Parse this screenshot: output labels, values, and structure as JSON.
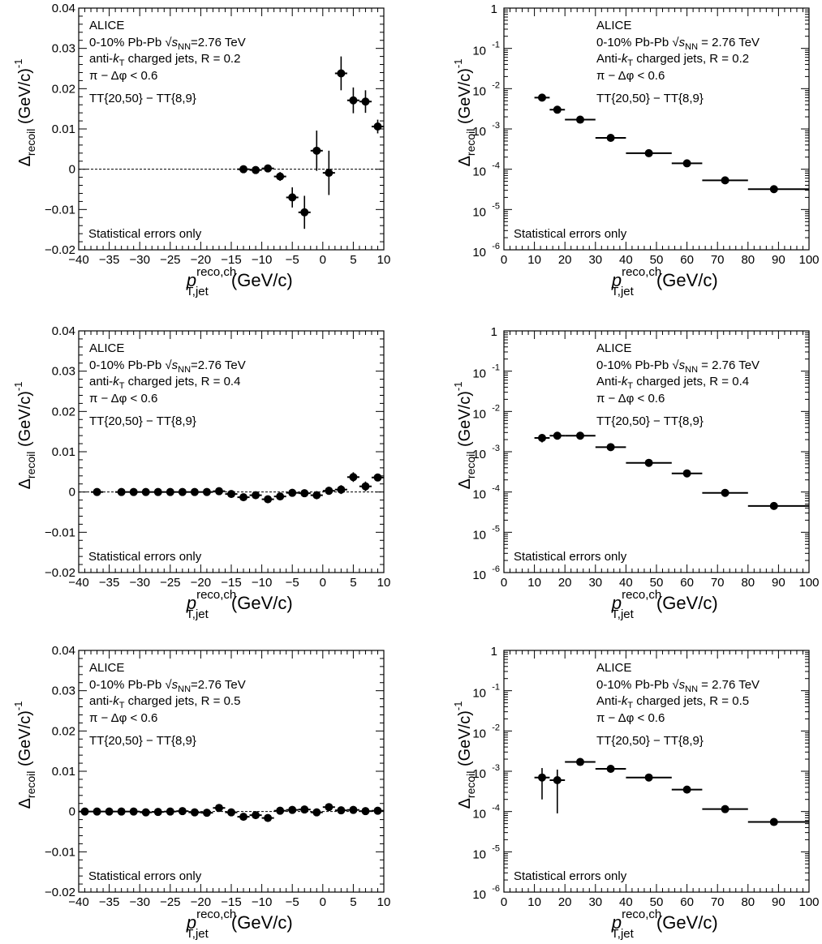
{
  "chart_data": [
    {
      "id": "lin-r02",
      "type": "scatter",
      "scale": "linear",
      "xlim": [
        -40,
        10
      ],
      "ylim": [
        -0.02,
        0.04
      ],
      "xticks": [
        "−40",
        "−35",
        "−30",
        "−25",
        "−20",
        "−15",
        "−10",
        "−5",
        "0",
        "5",
        "10"
      ],
      "yticks": [
        "−0.02",
        "−0.01",
        "0",
        "0.01",
        "0.02",
        "0.03",
        "0.04"
      ],
      "xlabel": "p",
      "xlabel_sup": "reco,ch",
      "xlabel_sub": "T,jet",
      "xlabel_unit": "(GeV/c)",
      "ylabel": "Δ",
      "ylabel_sub": "recoil",
      "ylabel_unit": "(GeV/c)",
      "ylabel_exp": "-1",
      "annotations": [
        "ALICE",
        "0-10% Pb-Pb √sNN=2.76 TeV",
        "anti-kT charged jets, R = 0.2",
        "π − Δφ < 0.6",
        "TT{20,50} − TT{8,9}"
      ],
      "note": "Statistical errors only",
      "reference_line": 0,
      "x": [
        -13,
        -11,
        -9,
        -7,
        -5,
        -3,
        -1,
        1,
        3,
        5,
        7,
        9
      ],
      "y": [
        0.0,
        -0.0002,
        0.0002,
        -0.0018,
        -0.007,
        -0.0107,
        0.0046,
        -0.0009,
        0.0238,
        0.0171,
        0.0168,
        0.0106
      ],
      "yerr": [
        0.0005,
        0.0005,
        0.0006,
        0.0011,
        0.0025,
        0.0041,
        0.005,
        0.0055,
        0.0042,
        0.0032,
        0.0028,
        0.0017
      ],
      "xerr": [
        1,
        1,
        1,
        1,
        1,
        1,
        1,
        1,
        1,
        1,
        1,
        1
      ]
    },
    {
      "id": "log-r02",
      "type": "scatter",
      "scale": "log",
      "xlim": [
        0,
        100
      ],
      "ylim": [
        1e-06,
        1
      ],
      "xticks": [
        "0",
        "10",
        "20",
        "30",
        "40",
        "50",
        "60",
        "70",
        "80",
        "90",
        "100"
      ],
      "yticks_base": [
        "10",
        "10",
        "10",
        "10",
        "10",
        "10",
        "1"
      ],
      "yticks_exp": [
        "-6",
        "-5",
        "-4",
        "-3",
        "-2",
        "-1",
        ""
      ],
      "xlabel": "p",
      "xlabel_sup": "reco,ch",
      "xlabel_sub": "T,jet",
      "xlabel_unit": "(GeV/c)",
      "ylabel": "Δ",
      "ylabel_sub": "recoil",
      "ylabel_unit": "(GeV/c)",
      "ylabel_exp": "-1",
      "annotations": [
        "ALICE",
        "0-10% Pb-Pb √sNN = 2.76 TeV",
        "Anti-kT charged jets, R = 0.2",
        "π − Δφ < 0.6",
        "TT{20,50} − TT{8,9}"
      ],
      "note": "Statistical errors only",
      "x": [
        12.5,
        17.5,
        25,
        35,
        47.5,
        60,
        72.5,
        88.5
      ],
      "y": [
        0.006,
        0.003,
        0.0017,
        0.0006,
        0.00025,
        0.00014,
        5.3e-05,
        3.2e-05
      ],
      "xlo": [
        10,
        15,
        20,
        30,
        40,
        55,
        65,
        80
      ],
      "xhi": [
        15,
        20,
        30,
        40,
        55,
        65,
        80,
        100
      ],
      "ylo": [
        0.0052,
        0.0026,
        0.0015,
        0.00053,
        0.00022,
        0.000125,
        4.3e-05,
        2.6e-05
      ],
      "yhi": [
        0.0068,
        0.0034,
        0.0019,
        0.00067,
        0.00028,
        0.000155,
        6.3e-05,
        3.8e-05
      ]
    },
    {
      "id": "lin-r04",
      "type": "scatter",
      "scale": "linear",
      "xlim": [
        -40,
        10
      ],
      "ylim": [
        -0.02,
        0.04
      ],
      "xticks": [
        "−40",
        "−35",
        "−30",
        "−25",
        "−20",
        "−15",
        "−10",
        "−5",
        "0",
        "5",
        "10"
      ],
      "yticks": [
        "−0.02",
        "−0.01",
        "0",
        "0.01",
        "0.02",
        "0.03",
        "0.04"
      ],
      "xlabel": "p",
      "xlabel_sup": "reco,ch",
      "xlabel_sub": "T,jet",
      "xlabel_unit": "(GeV/c)",
      "ylabel": "Δ",
      "ylabel_sub": "recoil",
      "ylabel_unit": "(GeV/c)",
      "ylabel_exp": "-1",
      "annotations": [
        "ALICE",
        "0-10% Pb-Pb √sNN=2.76 TeV",
        "anti-kT charged jets, R = 0.4",
        "π − Δφ < 0.6",
        "TT{20,50} − TT{8,9}"
      ],
      "note": "Statistical errors only",
      "reference_line": 0,
      "x": [
        -37,
        -33,
        -31,
        -29,
        -27,
        -25,
        -23,
        -21,
        -19,
        -17,
        -15,
        -13,
        -11,
        -9,
        -7,
        -5,
        -3,
        -1,
        1,
        3,
        5,
        7,
        9
      ],
      "y": [
        0.0,
        0.0,
        0.0,
        0.0,
        0.0,
        0.0,
        0.0,
        0.0,
        0.0,
        0.0002,
        -0.0005,
        -0.0013,
        -0.0008,
        -0.0018,
        -0.0011,
        -0.0002,
        -0.0003,
        -0.0008,
        0.0003,
        0.0006,
        0.0037,
        0.0014,
        0.0036
      ],
      "yerr": [
        0.0003,
        0.0003,
        0.0003,
        0.0003,
        0.0003,
        0.0003,
        0.0003,
        0.0003,
        0.0003,
        0.0004,
        0.0004,
        0.0006,
        0.0006,
        0.0007,
        0.0008,
        0.0008,
        0.0009,
        0.001,
        0.001,
        0.0011,
        0.0012,
        0.0012,
        0.0009
      ],
      "xerr": [
        1,
        1,
        1,
        1,
        1,
        1,
        1,
        1,
        1,
        1,
        1,
        1,
        1,
        1,
        1,
        1,
        1,
        1,
        1,
        1,
        1,
        1,
        1
      ]
    },
    {
      "id": "log-r04",
      "type": "scatter",
      "scale": "log",
      "xlim": [
        0,
        100
      ],
      "ylim": [
        1e-06,
        1
      ],
      "xticks": [
        "0",
        "10",
        "20",
        "30",
        "40",
        "50",
        "60",
        "70",
        "80",
        "90",
        "100"
      ],
      "yticks_base": [
        "10",
        "10",
        "10",
        "10",
        "10",
        "10",
        "1"
      ],
      "yticks_exp": [
        "-6",
        "-5",
        "-4",
        "-3",
        "-2",
        "-1",
        ""
      ],
      "xlabel": "p",
      "xlabel_sup": "reco,ch",
      "xlabel_sub": "T,jet",
      "xlabel_unit": "(GeV/c)",
      "ylabel": "Δ",
      "ylabel_sub": "recoil",
      "ylabel_unit": "(GeV/c)",
      "ylabel_exp": "-1",
      "annotations": [
        "ALICE",
        "0-10% Pb-Pb √sNN = 2.76 TeV",
        "Anti-kT charged jets, R = 0.4",
        "π − Δφ < 0.6",
        "TT{20,50} − TT{8,9}"
      ],
      "note": "Statistical errors only",
      "x": [
        12.5,
        17.5,
        25,
        35,
        47.5,
        60,
        72.5,
        88.5
      ],
      "y": [
        0.0022,
        0.0025,
        0.0025,
        0.0013,
        0.00053,
        0.00029,
        9.5e-05,
        4.5e-05
      ],
      "xlo": [
        10,
        15,
        20,
        30,
        40,
        55,
        65,
        80
      ],
      "xhi": [
        15,
        20,
        30,
        40,
        55,
        65,
        80,
        100
      ],
      "ylo": [
        0.0017,
        0.0021,
        0.0022,
        0.00117,
        0.00048,
        0.00026,
        8.5e-05,
        4e-05
      ],
      "yhi": [
        0.0027,
        0.0029,
        0.0028,
        0.00143,
        0.00058,
        0.00032,
        0.000105,
        5e-05
      ]
    },
    {
      "id": "lin-r05",
      "type": "scatter",
      "scale": "linear",
      "xlim": [
        -40,
        10
      ],
      "ylim": [
        -0.02,
        0.04
      ],
      "xticks": [
        "−40",
        "−35",
        "−30",
        "−25",
        "−20",
        "−15",
        "−10",
        "−5",
        "0",
        "5",
        "10"
      ],
      "yticks": [
        "−0.02",
        "−0.01",
        "0",
        "0.01",
        "0.02",
        "0.03",
        "0.04"
      ],
      "xlabel": "p",
      "xlabel_sup": "reco,ch",
      "xlabel_sub": "T,jet",
      "xlabel_unit": "(GeV/c)",
      "ylabel": "Δ",
      "ylabel_sub": "recoil",
      "ylabel_unit": "(GeV/c)",
      "ylabel_exp": "-1",
      "annotations": [
        "ALICE",
        "0-10% Pb-Pb √sNN=2.76 TeV",
        "anti-kT charged jets, R = 0.5",
        "π − Δφ < 0.6",
        "TT{20,50} − TT{8,9}"
      ],
      "note": "Statistical errors only",
      "reference_line": 0,
      "x": [
        -39,
        -37,
        -35,
        -33,
        -31,
        -29,
        -27,
        -25,
        -23,
        -21,
        -19,
        -17,
        -15,
        -13,
        -11,
        -9,
        -7,
        -5,
        -3,
        -1,
        1,
        3,
        5,
        7,
        9
      ],
      "y": [
        0.0,
        0.0,
        0.0,
        0.0,
        0.0,
        -0.0002,
        -0.0001,
        0.0,
        0.0001,
        -0.0002,
        -0.0003,
        0.0009,
        -0.0002,
        -0.0013,
        -0.0009,
        -0.0016,
        0.0002,
        0.0004,
        0.0005,
        -0.0002,
        0.0011,
        0.0003,
        0.0004,
        0.0001,
        0.0002
      ],
      "yerr": [
        0.0003,
        0.0003,
        0.0003,
        0.0003,
        0.0003,
        0.0003,
        0.0003,
        0.0003,
        0.0003,
        0.0003,
        0.0003,
        0.0004,
        0.0004,
        0.0005,
        0.0005,
        0.0006,
        0.0006,
        0.0006,
        0.0006,
        0.0006,
        0.0006,
        0.0005,
        0.0004,
        0.0004,
        0.0004
      ],
      "xerr": [
        1,
        1,
        1,
        1,
        1,
        1,
        1,
        1,
        1,
        1,
        1,
        1,
        1,
        1,
        1,
        1,
        1,
        1,
        1,
        1,
        1,
        1,
        1,
        1,
        1
      ]
    },
    {
      "id": "log-r05",
      "type": "scatter",
      "scale": "log",
      "xlim": [
        0,
        100
      ],
      "ylim": [
        1e-06,
        1
      ],
      "xticks": [
        "0",
        "10",
        "20",
        "30",
        "40",
        "50",
        "60",
        "70",
        "80",
        "90",
        "100"
      ],
      "yticks_base": [
        "10",
        "10",
        "10",
        "10",
        "10",
        "10",
        "1"
      ],
      "yticks_exp": [
        "-6",
        "-5",
        "-4",
        "-3",
        "-2",
        "-1",
        ""
      ],
      "xlabel": "p",
      "xlabel_sup": "reco,ch",
      "xlabel_sub": "T,jet",
      "xlabel_unit": "(GeV/c)",
      "ylabel": "Δ",
      "ylabel_sub": "recoil",
      "ylabel_unit": "(GeV/c)",
      "ylabel_exp": "-1",
      "annotations": [
        "ALICE",
        "0-10% Pb-Pb √sNN = 2.76 TeV",
        "Anti-kT charged jets, R = 0.5",
        "π − Δφ < 0.6",
        "TT{20,50} − TT{8,9}"
      ],
      "note": "Statistical errors only",
      "x": [
        12.5,
        17.5,
        25,
        35,
        47.5,
        60,
        72.5,
        88.5
      ],
      "y": [
        0.0007,
        0.0006,
        0.0017,
        0.00115,
        0.0007,
        0.00035,
        0.000115,
        5.5e-05
      ],
      "xlo": [
        10,
        15,
        20,
        30,
        40,
        55,
        65,
        80
      ],
      "xhi": [
        15,
        20,
        30,
        40,
        55,
        65,
        80,
        100
      ],
      "ylo": [
        0.0002,
        9e-05,
        0.00145,
        0.001,
        0.00061,
        0.00031,
        0.0001,
        4.8e-05
      ],
      "yhi": [
        0.0012,
        0.0011,
        0.00195,
        0.0013,
        0.00079,
        0.00039,
        0.00013,
        6.2e-05
      ]
    }
  ]
}
